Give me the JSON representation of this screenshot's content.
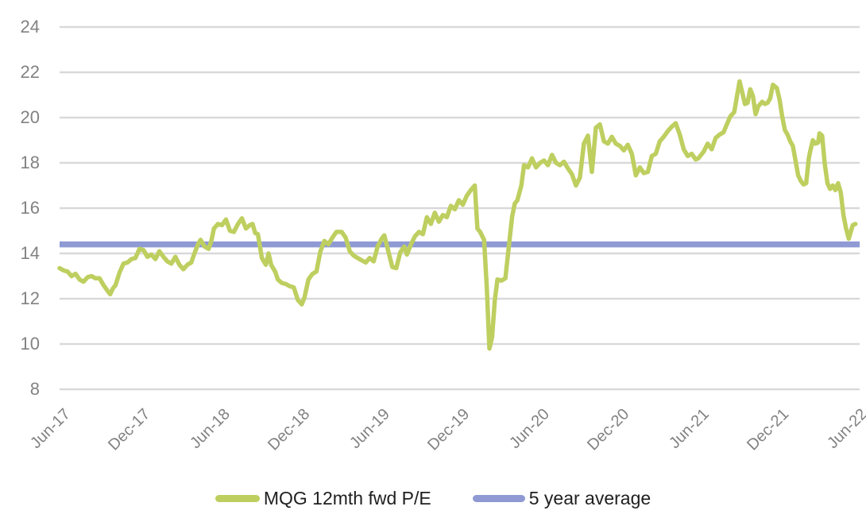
{
  "chart_data": {
    "type": "line",
    "x_ticks": [
      "Jun-17",
      "Dec-17",
      "Jun-18",
      "Dec-18",
      "Jun-19",
      "Dec-19",
      "Jun-20",
      "Dec-20",
      "Jun-21",
      "Dec-21",
      "Jun-22"
    ],
    "x_tick_positions_months": [
      0,
      6,
      12,
      18,
      24,
      30,
      36,
      42,
      48,
      54,
      60
    ],
    "y_ticks": [
      24,
      22,
      20,
      18,
      16,
      14,
      12,
      10,
      8
    ],
    "ylim": [
      8,
      24
    ],
    "grid": "horizontal",
    "legend_position": "bottom",
    "colors": {
      "gridline": "#d9d9d9",
      "axis_label": "#828282",
      "legend_text": "#1f1f1f"
    },
    "series": [
      {
        "name": "MQG 12mth fwd P/E",
        "color": "#becf60",
        "points": [
          [
            0,
            13.35
          ],
          [
            0.3,
            13.25
          ],
          [
            0.6,
            13.2
          ],
          [
            0.9,
            13.0
          ],
          [
            1.2,
            13.1
          ],
          [
            1.5,
            12.85
          ],
          [
            1.8,
            12.75
          ],
          [
            2.1,
            12.95
          ],
          [
            2.4,
            13.0
          ],
          [
            2.7,
            12.9
          ],
          [
            3.0,
            12.9
          ],
          [
            3.3,
            12.6
          ],
          [
            3.6,
            12.35
          ],
          [
            3.8,
            12.2
          ],
          [
            4.0,
            12.45
          ],
          [
            4.2,
            12.6
          ],
          [
            4.5,
            13.15
          ],
          [
            4.8,
            13.55
          ],
          [
            5.1,
            13.6
          ],
          [
            5.4,
            13.75
          ],
          [
            5.7,
            13.8
          ],
          [
            6.0,
            14.2
          ],
          [
            6.3,
            14.15
          ],
          [
            6.6,
            13.85
          ],
          [
            6.9,
            13.95
          ],
          [
            7.2,
            13.75
          ],
          [
            7.5,
            14.1
          ],
          [
            7.8,
            13.85
          ],
          [
            8.1,
            13.65
          ],
          [
            8.4,
            13.55
          ],
          [
            8.7,
            13.85
          ],
          [
            9.0,
            13.5
          ],
          [
            9.3,
            13.3
          ],
          [
            9.6,
            13.5
          ],
          [
            9.9,
            13.6
          ],
          [
            10.1,
            13.95
          ],
          [
            10.4,
            14.4
          ],
          [
            10.6,
            14.6
          ],
          [
            10.9,
            14.3
          ],
          [
            11.2,
            14.2
          ],
          [
            11.4,
            14.55
          ],
          [
            11.6,
            15.1
          ],
          [
            11.9,
            15.3
          ],
          [
            12.2,
            15.25
          ],
          [
            12.5,
            15.5
          ],
          [
            12.8,
            15.0
          ],
          [
            13.1,
            14.95
          ],
          [
            13.4,
            15.3
          ],
          [
            13.7,
            15.55
          ],
          [
            14.0,
            15.1
          ],
          [
            14.3,
            15.25
          ],
          [
            14.5,
            15.3
          ],
          [
            14.7,
            14.9
          ],
          [
            14.9,
            14.85
          ],
          [
            15.2,
            13.8
          ],
          [
            15.5,
            13.5
          ],
          [
            15.7,
            14.0
          ],
          [
            15.9,
            13.5
          ],
          [
            16.2,
            13.2
          ],
          [
            16.4,
            12.85
          ],
          [
            16.7,
            12.7
          ],
          [
            17.0,
            12.65
          ],
          [
            17.3,
            12.55
          ],
          [
            17.6,
            12.5
          ],
          [
            17.9,
            11.95
          ],
          [
            18.2,
            11.75
          ],
          [
            18.4,
            12.05
          ],
          [
            18.7,
            12.85
          ],
          [
            19.0,
            13.1
          ],
          [
            19.3,
            13.2
          ],
          [
            19.6,
            14.1
          ],
          [
            19.9,
            14.55
          ],
          [
            20.2,
            14.4
          ],
          [
            20.5,
            14.7
          ],
          [
            20.8,
            14.95
          ],
          [
            21.2,
            14.95
          ],
          [
            21.5,
            14.7
          ],
          [
            21.8,
            14.1
          ],
          [
            22.1,
            13.9
          ],
          [
            22.4,
            13.8
          ],
          [
            22.7,
            13.7
          ],
          [
            23.0,
            13.6
          ],
          [
            23.3,
            13.8
          ],
          [
            23.6,
            13.65
          ],
          [
            23.9,
            14.3
          ],
          [
            24.2,
            14.65
          ],
          [
            24.4,
            14.8
          ],
          [
            24.7,
            14.1
          ],
          [
            25.0,
            13.4
          ],
          [
            25.3,
            13.35
          ],
          [
            25.6,
            14.05
          ],
          [
            25.9,
            14.3
          ],
          [
            26.1,
            13.95
          ],
          [
            26.4,
            14.4
          ],
          [
            26.7,
            14.75
          ],
          [
            27.0,
            14.95
          ],
          [
            27.3,
            14.85
          ],
          [
            27.6,
            15.6
          ],
          [
            27.9,
            15.3
          ],
          [
            28.2,
            15.8
          ],
          [
            28.5,
            15.4
          ],
          [
            28.8,
            15.7
          ],
          [
            29.1,
            15.6
          ],
          [
            29.4,
            16.1
          ],
          [
            29.7,
            15.95
          ],
          [
            30.0,
            16.35
          ],
          [
            30.3,
            16.15
          ],
          [
            30.6,
            16.55
          ],
          [
            30.9,
            16.8
          ],
          [
            31.2,
            17.0
          ],
          [
            31.4,
            15.1
          ],
          [
            31.6,
            14.95
          ],
          [
            31.9,
            14.6
          ],
          [
            32.1,
            12.5
          ],
          [
            32.3,
            9.8
          ],
          [
            32.5,
            10.3
          ],
          [
            32.7,
            11.9
          ],
          [
            32.9,
            12.85
          ],
          [
            33.2,
            12.8
          ],
          [
            33.5,
            12.9
          ],
          [
            33.7,
            14.0
          ],
          [
            34.0,
            15.6
          ],
          [
            34.2,
            16.2
          ],
          [
            34.4,
            16.35
          ],
          [
            34.7,
            17.0
          ],
          [
            34.9,
            17.9
          ],
          [
            35.2,
            17.8
          ],
          [
            35.5,
            18.2
          ],
          [
            35.8,
            17.8
          ],
          [
            36.1,
            18.0
          ],
          [
            36.4,
            18.1
          ],
          [
            36.7,
            17.9
          ],
          [
            37.0,
            18.35
          ],
          [
            37.3,
            18.0
          ],
          [
            37.6,
            17.9
          ],
          [
            37.9,
            18.05
          ],
          [
            38.2,
            17.75
          ],
          [
            38.5,
            17.5
          ],
          [
            38.8,
            17.0
          ],
          [
            39.1,
            17.35
          ],
          [
            39.4,
            18.85
          ],
          [
            39.7,
            19.2
          ],
          [
            40.0,
            17.6
          ],
          [
            40.3,
            19.55
          ],
          [
            40.6,
            19.7
          ],
          [
            40.9,
            18.95
          ],
          [
            41.2,
            18.85
          ],
          [
            41.5,
            19.15
          ],
          [
            41.8,
            18.85
          ],
          [
            42.1,
            18.75
          ],
          [
            42.4,
            18.55
          ],
          [
            42.7,
            18.8
          ],
          [
            43.0,
            18.4
          ],
          [
            43.3,
            17.45
          ],
          [
            43.6,
            17.8
          ],
          [
            43.9,
            17.55
          ],
          [
            44.2,
            17.6
          ],
          [
            44.5,
            18.3
          ],
          [
            44.8,
            18.4
          ],
          [
            45.1,
            18.95
          ],
          [
            45.4,
            19.15
          ],
          [
            45.7,
            19.4
          ],
          [
            46.0,
            19.6
          ],
          [
            46.3,
            19.75
          ],
          [
            46.6,
            19.25
          ],
          [
            46.9,
            18.6
          ],
          [
            47.2,
            18.3
          ],
          [
            47.5,
            18.4
          ],
          [
            47.8,
            18.15
          ],
          [
            48.0,
            18.2
          ],
          [
            48.4,
            18.5
          ],
          [
            48.7,
            18.85
          ],
          [
            49.0,
            18.6
          ],
          [
            49.3,
            19.1
          ],
          [
            49.6,
            19.25
          ],
          [
            49.9,
            19.35
          ],
          [
            50.1,
            19.65
          ],
          [
            50.4,
            20.05
          ],
          [
            50.7,
            20.25
          ],
          [
            50.9,
            20.95
          ],
          [
            51.1,
            21.6
          ],
          [
            51.3,
            21.1
          ],
          [
            51.5,
            20.6
          ],
          [
            51.7,
            20.65
          ],
          [
            51.9,
            21.25
          ],
          [
            52.1,
            20.95
          ],
          [
            52.3,
            20.15
          ],
          [
            52.5,
            20.5
          ],
          [
            52.8,
            20.7
          ],
          [
            53.0,
            20.6
          ],
          [
            53.2,
            20.65
          ],
          [
            53.4,
            20.85
          ],
          [
            53.6,
            21.45
          ],
          [
            53.9,
            21.3
          ],
          [
            54.1,
            20.8
          ],
          [
            54.3,
            20.05
          ],
          [
            54.5,
            19.45
          ],
          [
            54.7,
            19.25
          ],
          [
            54.9,
            18.95
          ],
          [
            55.1,
            18.75
          ],
          [
            55.3,
            18.1
          ],
          [
            55.5,
            17.45
          ],
          [
            55.7,
            17.2
          ],
          [
            55.9,
            17.05
          ],
          [
            56.1,
            17.1
          ],
          [
            56.3,
            18.2
          ],
          [
            56.4,
            18.5
          ],
          [
            56.6,
            19.0
          ],
          [
            56.8,
            18.85
          ],
          [
            57.0,
            18.9
          ],
          [
            57.1,
            19.3
          ],
          [
            57.3,
            19.2
          ],
          [
            57.5,
            17.95
          ],
          [
            57.7,
            17.1
          ],
          [
            57.9,
            16.85
          ],
          [
            58.1,
            17.0
          ],
          [
            58.3,
            16.8
          ],
          [
            58.5,
            17.1
          ],
          [
            58.7,
            16.7
          ],
          [
            58.9,
            15.7
          ],
          [
            59.1,
            15.1
          ],
          [
            59.3,
            14.65
          ],
          [
            59.6,
            15.25
          ],
          [
            59.8,
            15.3
          ]
        ]
      },
      {
        "name": "5 year average",
        "color": "#8f9ad4",
        "style": "constant",
        "value": 14.4
      }
    ]
  }
}
